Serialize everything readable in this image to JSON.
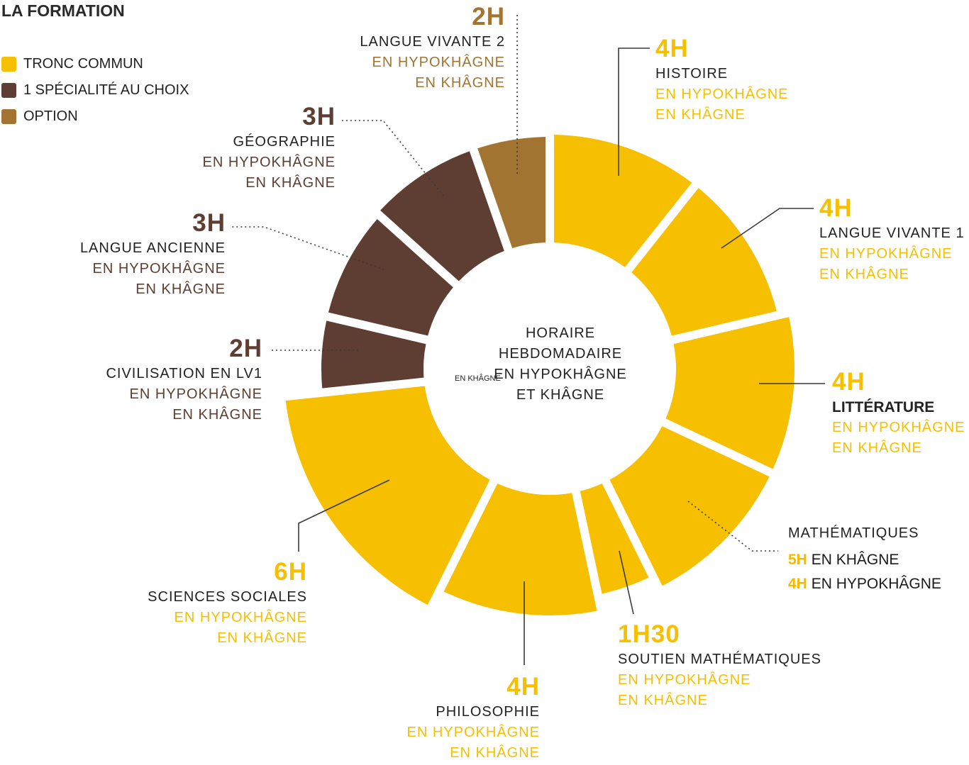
{
  "legend": {
    "title": "LA FORMATION",
    "items": [
      {
        "label": "TRONC COMMUN",
        "color": "#f6bf00"
      },
      {
        "label": "1 SPÉCIALITÉ AU CHOIX",
        "color": "#5e3e32"
      },
      {
        "label": "OPTION",
        "color": "#a27431"
      }
    ]
  },
  "center": {
    "lines": [
      "HORAIRE",
      "HEBDOMADAIRE",
      "EN HYPOKHÂGNE",
      "ET KHÂGNE"
    ],
    "stray_text": "EN KHÂGNE"
  },
  "chart_data": {
    "type": "donut",
    "title": "LA FORMATION",
    "unit": "heures",
    "slices": [
      {
        "name": "HISTOIRE",
        "hours_label": "4H",
        "value": 4,
        "category": "TRONC COMMUN",
        "color": "#f6bf00",
        "sub": [
          "EN HYPOKHÂGNE",
          "EN KHÂGNE"
        ]
      },
      {
        "name": "LANGUE VIVANTE 1",
        "hours_label": "4H",
        "value": 4,
        "category": "TRONC COMMUN",
        "color": "#f6bf00",
        "sub": [
          "EN HYPOKHÂGNE",
          "EN KHÂGNE"
        ]
      },
      {
        "name": "LITTÉRATURE",
        "hours_label": "4H",
        "value": 4,
        "category": "TRONC COMMUN",
        "color": "#f6bf00",
        "sub": [
          "EN HYPOKHÂGNE",
          "EN KHÂGNE"
        ]
      },
      {
        "name": "MATHÉMATIQUES",
        "hours_label": "",
        "value": 4,
        "category": "TRONC COMMUN",
        "color": "#f6bf00",
        "sub": [],
        "details": [
          {
            "hours": "5H",
            "text": "EN KHÂGNE"
          },
          {
            "hours": "4H",
            "text": "EN HYPOKHÂGNE"
          }
        ]
      },
      {
        "name": "SOUTIEN MATHÉMATIQUES",
        "hours_label": "1H30",
        "value": 1.5,
        "category": "TRONC COMMUN",
        "color": "#f6bf00",
        "sub": [
          "EN HYPOKHÂGNE",
          "EN KHÂGNE"
        ]
      },
      {
        "name": "PHILOSOPHIE",
        "hours_label": "4H",
        "value": 4,
        "category": "TRONC COMMUN",
        "color": "#f6bf00",
        "sub": [
          "EN HYPOKHÂGNE",
          "EN KHÂGNE"
        ]
      },
      {
        "name": "SCIENCES SOCIALES",
        "hours_label": "6H",
        "value": 6,
        "category": "TRONC COMMUN",
        "color": "#f6bf00",
        "sub": [
          "EN HYPOKHÂGNE",
          "EN KHÂGNE"
        ]
      },
      {
        "name": "CIVILISATION EN LV1",
        "hours_label": "2H",
        "value": 2,
        "category": "1 SPÉCIALITÉ AU CHOIX",
        "color": "#5e3e32",
        "sub": [
          "EN HYPOKHÂGNE",
          "EN KHÂGNE"
        ]
      },
      {
        "name": "LANGUE ANCIENNE",
        "hours_label": "3H",
        "value": 3,
        "category": "1 SPÉCIALITÉ AU CHOIX",
        "color": "#5e3e32",
        "sub": [
          "EN HYPOKHÂGNE",
          "EN KHÂGNE"
        ]
      },
      {
        "name": "GÉOGRAPHIE",
        "hours_label": "3H",
        "value": 3,
        "category": "1 SPÉCIALITÉ AU CHOIX",
        "color": "#5e3e32",
        "sub": [
          "EN HYPOKHÂGNE",
          "EN KHÂGNE"
        ]
      },
      {
        "name": "LANGUE VIVANTE 2",
        "hours_label": "2H",
        "value": 2,
        "category": "OPTION",
        "color": "#a27431",
        "sub": [
          "EN HYPOKHÂGNE",
          "EN KHÂGNE"
        ]
      }
    ]
  }
}
